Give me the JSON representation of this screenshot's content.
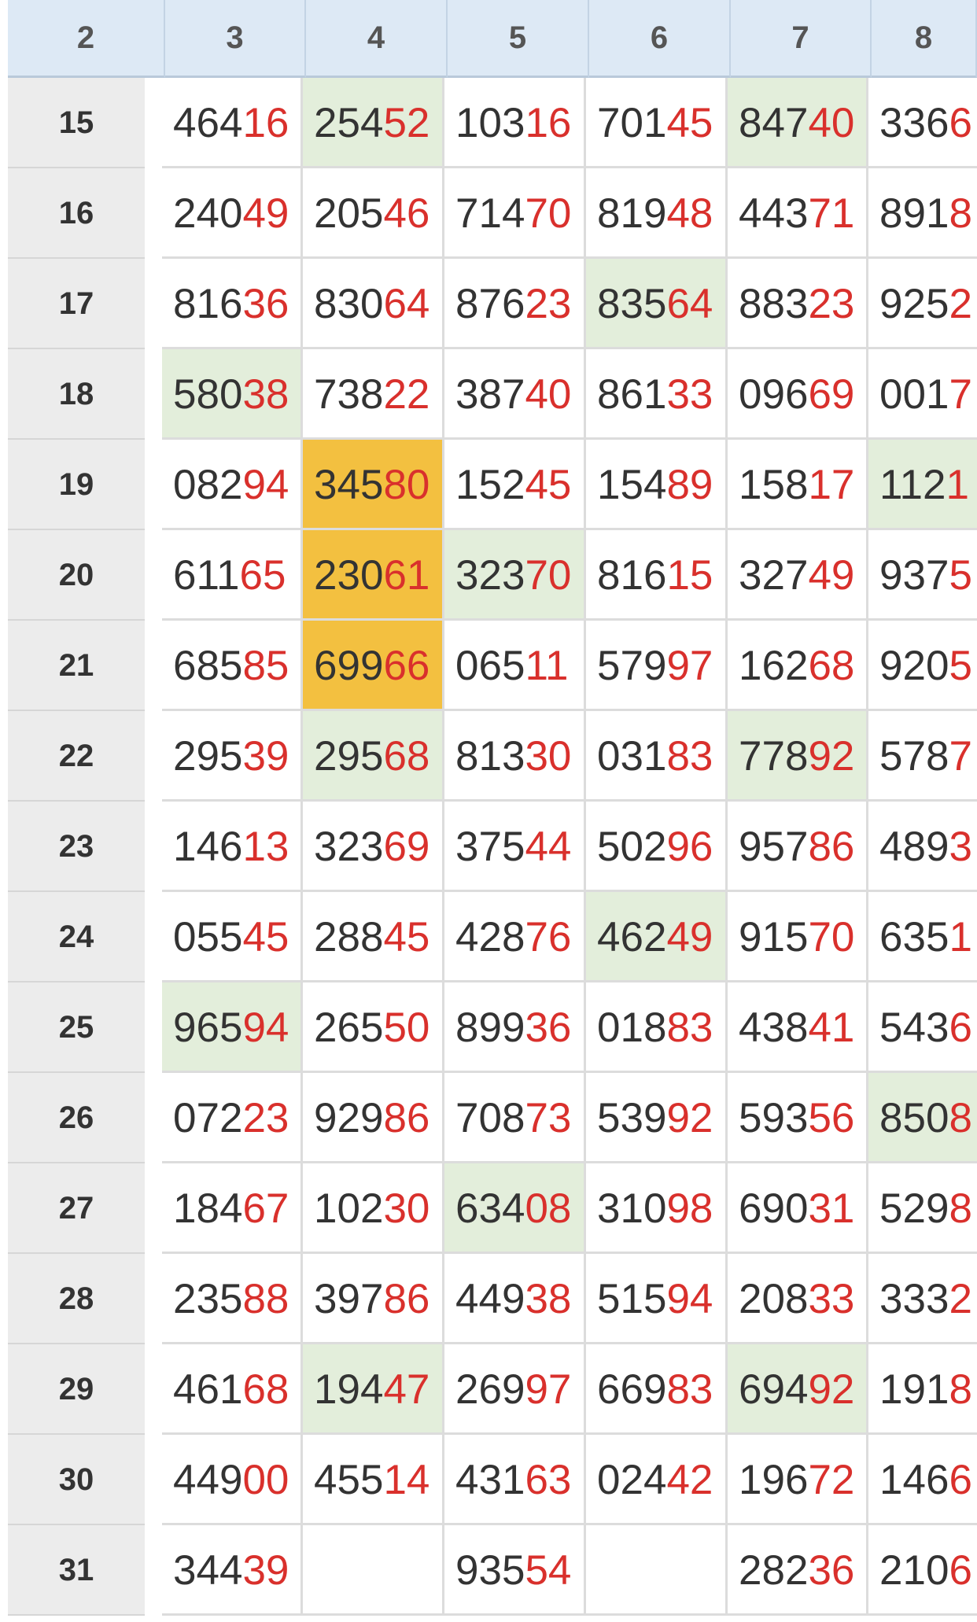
{
  "table": {
    "columns": [
      "2",
      "3",
      "4",
      "5",
      "6",
      "7",
      "8"
    ],
    "rows": [
      {
        "label": "15",
        "cells": [
          {
            "black": "464",
            "red": "16"
          },
          {
            "black": "254",
            "red": "52",
            "highlight": "green"
          },
          {
            "black": "103",
            "red": "16"
          },
          {
            "black": "701",
            "red": "45"
          },
          {
            "black": "847",
            "red": "40",
            "highlight": "green"
          },
          {
            "black": "336",
            "red": "6"
          }
        ]
      },
      {
        "label": "16",
        "cells": [
          {
            "black": "240",
            "red": "49"
          },
          {
            "black": "205",
            "red": "46"
          },
          {
            "black": "714",
            "red": "70"
          },
          {
            "black": "819",
            "red": "48"
          },
          {
            "black": "443",
            "red": "71"
          },
          {
            "black": "891",
            "red": "8"
          }
        ]
      },
      {
        "label": "17",
        "cells": [
          {
            "black": "816",
            "red": "36"
          },
          {
            "black": "830",
            "red": "64"
          },
          {
            "black": "876",
            "red": "23"
          },
          {
            "black": "835",
            "red": "64",
            "highlight": "green"
          },
          {
            "black": "883",
            "red": "23"
          },
          {
            "black": "925",
            "red": "2"
          }
        ]
      },
      {
        "label": "18",
        "cells": [
          {
            "black": "580",
            "red": "38",
            "highlight": "green"
          },
          {
            "black": "738",
            "red": "22"
          },
          {
            "black": "387",
            "red": "40"
          },
          {
            "black": "861",
            "red": "33"
          },
          {
            "black": "096",
            "red": "69"
          },
          {
            "black": "001",
            "red": "7"
          }
        ]
      },
      {
        "label": "19",
        "cells": [
          {
            "black": "082",
            "red": "94"
          },
          {
            "black": "345",
            "red": "80",
            "highlight": "orange"
          },
          {
            "black": "152",
            "red": "45"
          },
          {
            "black": "154",
            "red": "89"
          },
          {
            "black": "158",
            "red": "17"
          },
          {
            "black": "112",
            "red": "1",
            "highlight": "green"
          }
        ]
      },
      {
        "label": "20",
        "cells": [
          {
            "black": "611",
            "red": "65"
          },
          {
            "black": "230",
            "red": "61",
            "highlight": "orange"
          },
          {
            "black": "323",
            "red": "70",
            "highlight": "green"
          },
          {
            "black": "816",
            "red": "15"
          },
          {
            "black": "327",
            "red": "49"
          },
          {
            "black": "937",
            "red": "5"
          }
        ]
      },
      {
        "label": "21",
        "cells": [
          {
            "black": "685",
            "red": "85"
          },
          {
            "black": "699",
            "red": "66",
            "highlight": "orange"
          },
          {
            "black": "065",
            "red": "11"
          },
          {
            "black": "579",
            "red": "97"
          },
          {
            "black": "162",
            "red": "68"
          },
          {
            "black": "920",
            "red": "5"
          }
        ]
      },
      {
        "label": "22",
        "cells": [
          {
            "black": "295",
            "red": "39"
          },
          {
            "black": "295",
            "red": "68",
            "highlight": "green"
          },
          {
            "black": "813",
            "red": "30"
          },
          {
            "black": "031",
            "red": "83"
          },
          {
            "black": "778",
            "red": "92",
            "highlight": "green"
          },
          {
            "black": "578",
            "red": "7"
          }
        ]
      },
      {
        "label": "23",
        "cells": [
          {
            "black": "146",
            "red": "13"
          },
          {
            "black": "323",
            "red": "69"
          },
          {
            "black": "375",
            "red": "44"
          },
          {
            "black": "502",
            "red": "96"
          },
          {
            "black": "957",
            "red": "86"
          },
          {
            "black": "489",
            "red": "3"
          }
        ]
      },
      {
        "label": "24",
        "cells": [
          {
            "black": "055",
            "red": "45"
          },
          {
            "black": "288",
            "red": "45"
          },
          {
            "black": "428",
            "red": "76"
          },
          {
            "black": "462",
            "red": "49",
            "highlight": "green"
          },
          {
            "black": "915",
            "red": "70"
          },
          {
            "black": "635",
            "red": "1"
          }
        ]
      },
      {
        "label": "25",
        "cells": [
          {
            "black": "965",
            "red": "94",
            "highlight": "green"
          },
          {
            "black": "265",
            "red": "50"
          },
          {
            "black": "899",
            "red": "36"
          },
          {
            "black": "018",
            "red": "83"
          },
          {
            "black": "438",
            "red": "41"
          },
          {
            "black": "543",
            "red": "6"
          }
        ]
      },
      {
        "label": "26",
        "cells": [
          {
            "black": "072",
            "red": "23"
          },
          {
            "black": "929",
            "red": "86"
          },
          {
            "black": "708",
            "red": "73"
          },
          {
            "black": "539",
            "red": "92"
          },
          {
            "black": "593",
            "red": "56"
          },
          {
            "black": "850",
            "red": "8",
            "highlight": "green"
          }
        ]
      },
      {
        "label": "27",
        "cells": [
          {
            "black": "184",
            "red": "67"
          },
          {
            "black": "102",
            "red": "30"
          },
          {
            "black": "634",
            "red": "08",
            "highlight": "green"
          },
          {
            "black": "310",
            "red": "98"
          },
          {
            "black": "690",
            "red": "31"
          },
          {
            "black": "529",
            "red": "8"
          }
        ]
      },
      {
        "label": "28",
        "cells": [
          {
            "black": "235",
            "red": "88"
          },
          {
            "black": "397",
            "red": "86"
          },
          {
            "black": "449",
            "red": "38"
          },
          {
            "black": "515",
            "red": "94"
          },
          {
            "black": "208",
            "red": "33"
          },
          {
            "black": "333",
            "red": "2"
          }
        ]
      },
      {
        "label": "29",
        "cells": [
          {
            "black": "461",
            "red": "68"
          },
          {
            "black": "194",
            "red": "47",
            "highlight": "green"
          },
          {
            "black": "269",
            "red": "97"
          },
          {
            "black": "669",
            "red": "83"
          },
          {
            "black": "694",
            "red": "92",
            "highlight": "green"
          },
          {
            "black": "191",
            "red": "8"
          }
        ]
      },
      {
        "label": "30",
        "cells": [
          {
            "black": "449",
            "red": "00"
          },
          {
            "black": "455",
            "red": "14"
          },
          {
            "black": "431",
            "red": "63"
          },
          {
            "black": "024",
            "red": "42"
          },
          {
            "black": "196",
            "red": "72"
          },
          {
            "black": "146",
            "red": "6"
          }
        ]
      },
      {
        "label": "31",
        "cells": [
          {
            "black": "344",
            "red": "39"
          },
          null,
          {
            "black": "935",
            "red": "54"
          },
          null,
          {
            "black": "282",
            "red": "36"
          },
          {
            "black": "210",
            "red": "6"
          }
        ]
      }
    ]
  }
}
